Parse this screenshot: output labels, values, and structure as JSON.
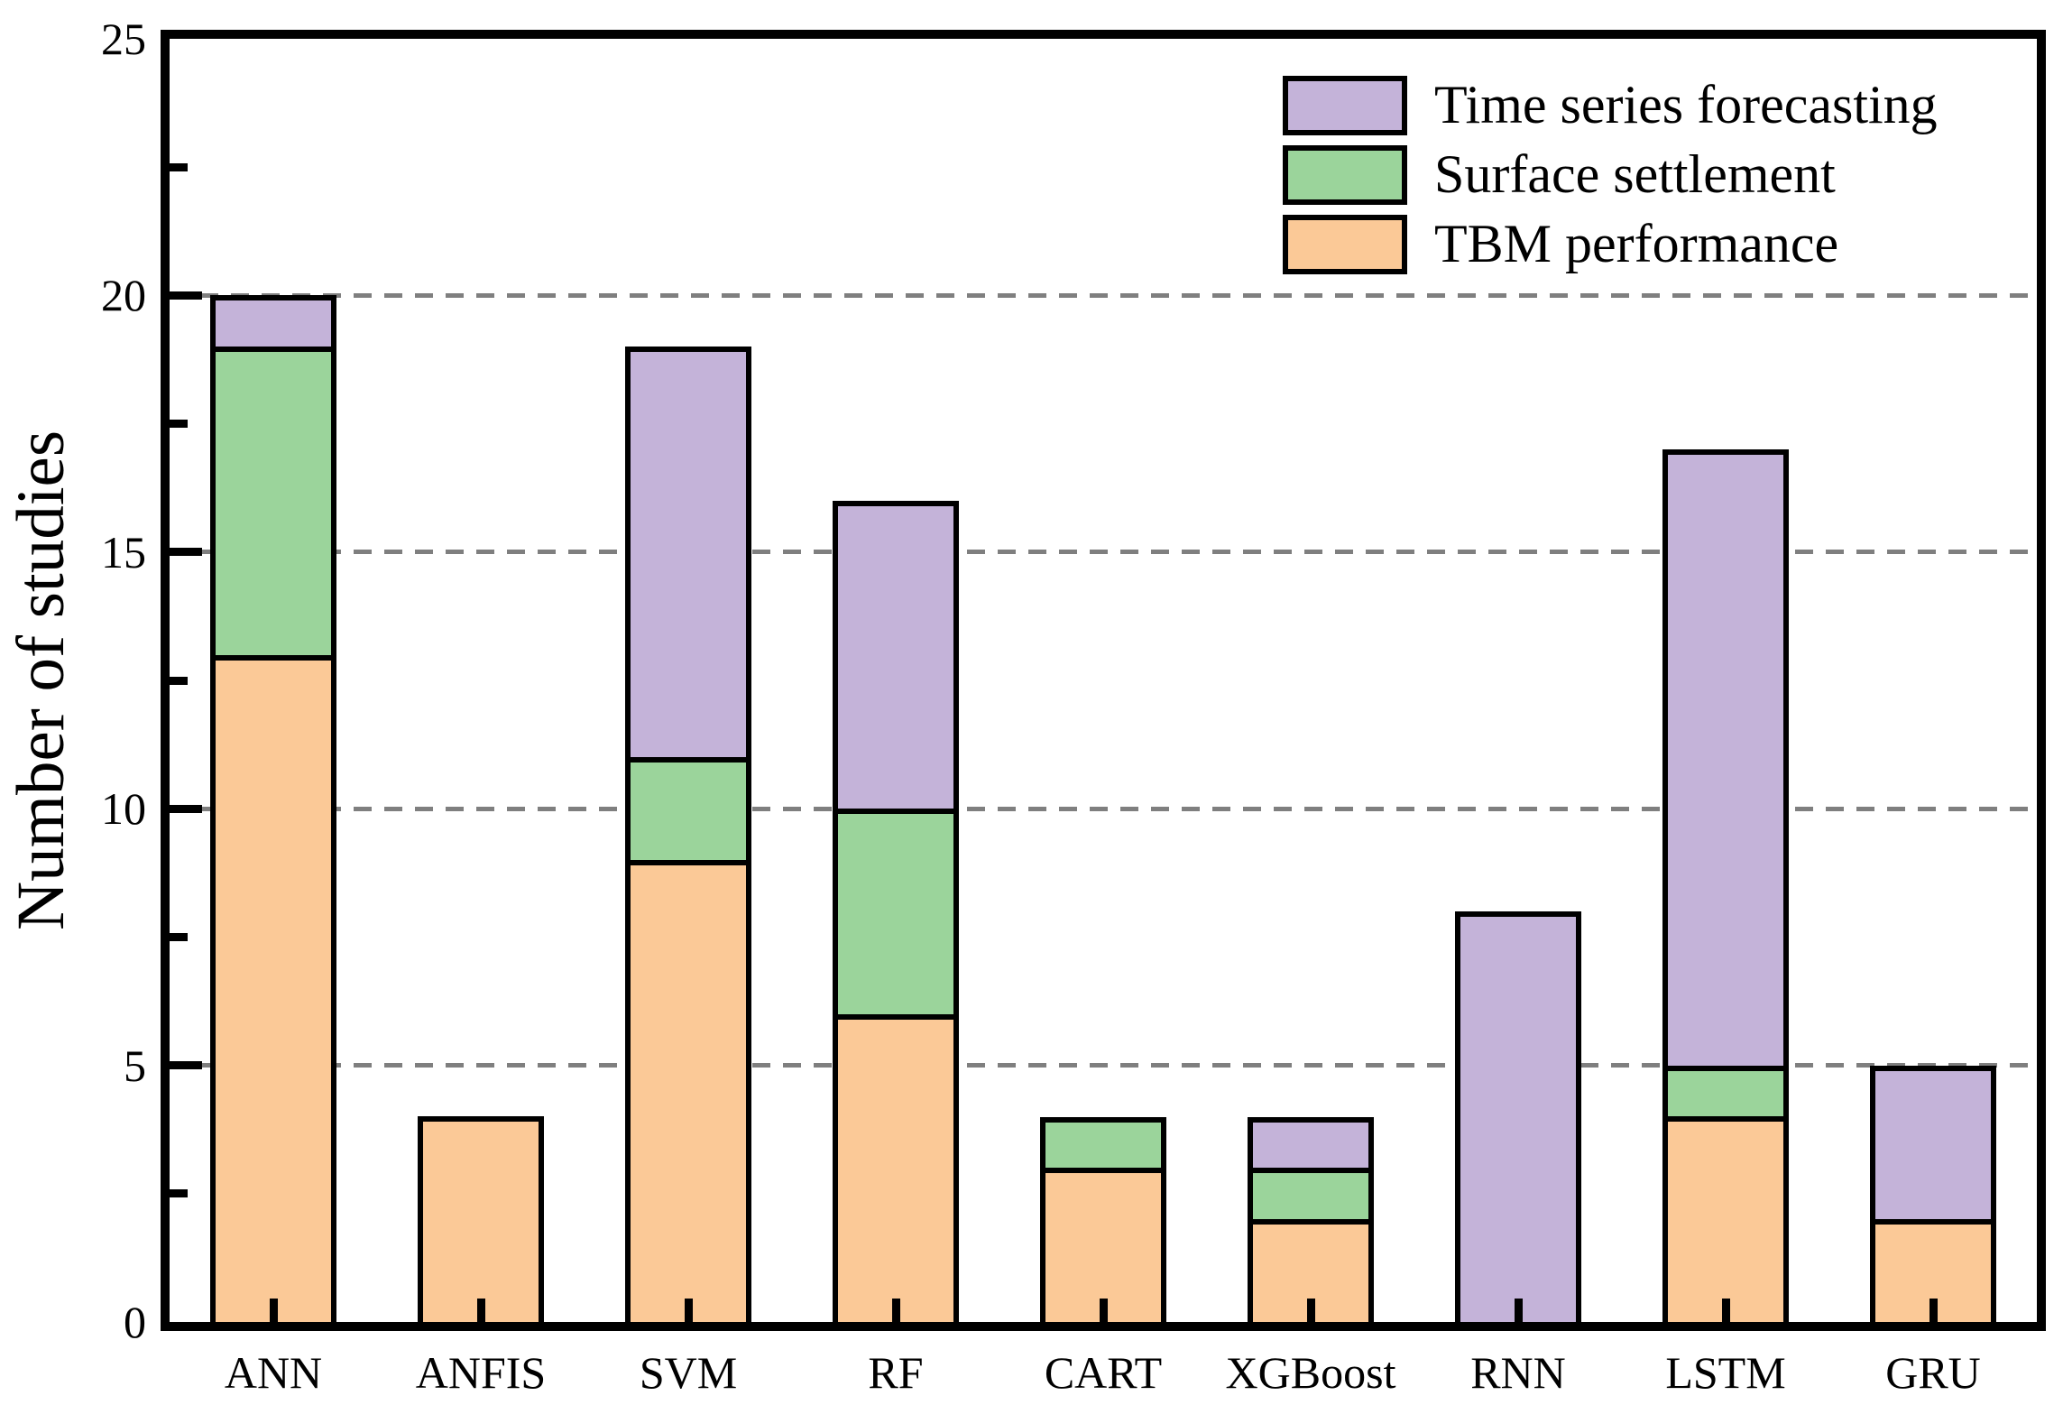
{
  "chart_data": {
    "type": "bar",
    "stacked": true,
    "title": "",
    "xlabel": "",
    "ylabel": "Number of studies",
    "categories": [
      "ANN",
      "ANFIS",
      "SVM",
      "RF",
      "CART",
      "XGBoost",
      "RNN",
      "LSTM",
      "GRU"
    ],
    "series": [
      {
        "name": "TBM performance",
        "color": "#fbc997",
        "values": [
          13,
          4,
          9,
          6,
          3,
          2,
          0,
          4,
          2
        ]
      },
      {
        "name": "Surface settlement",
        "color": "#9bd49b",
        "values": [
          6,
          0,
          2,
          4,
          1,
          1,
          0,
          1,
          0
        ]
      },
      {
        "name": "Time series forecasting",
        "color": "#c4b3d9",
        "values": [
          1,
          0,
          8,
          6,
          0,
          1,
          8,
          12,
          3
        ]
      }
    ],
    "totals": [
      20,
      4,
      19,
      16,
      4,
      4,
      8,
      17,
      5
    ],
    "ylim": [
      0,
      25
    ],
    "yticks": [
      0,
      5,
      10,
      15,
      20,
      25
    ],
    "minor_yticks": [
      2.5,
      7.5,
      12.5,
      17.5,
      22.5
    ],
    "grid": {
      "horizontal": true,
      "style": "dashed",
      "color": "#7f7f7f",
      "at": [
        5,
        10,
        15,
        20
      ]
    },
    "legend_position": "upper right",
    "legend_order_top_to_bottom": [
      "Time series forecasting",
      "Surface settlement",
      "TBM performance"
    ],
    "bar_edge_color": "#000000",
    "axis_color": "#000000"
  }
}
